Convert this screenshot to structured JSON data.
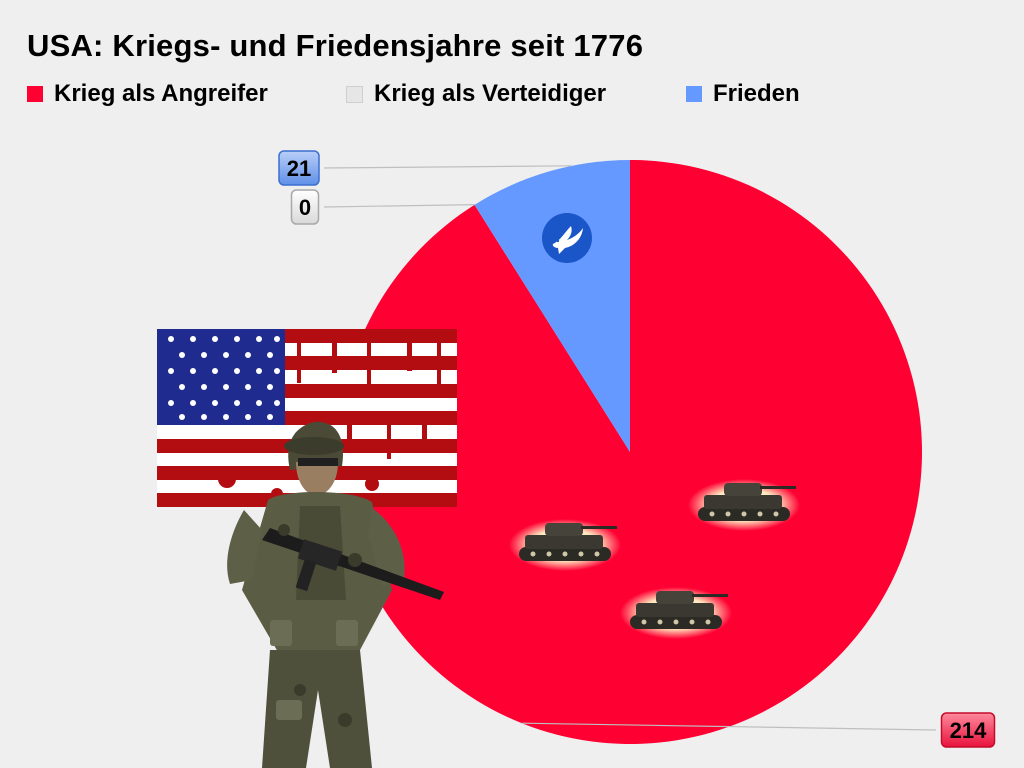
{
  "chart_data": {
    "type": "pie",
    "title": "USA: Kriegs- und Friedensjahre seit 1776",
    "legend_placement": "top",
    "slices": [
      {
        "label": "Krieg als Angreifer",
        "value": 214,
        "color": "#ff0033"
      },
      {
        "label": "Krieg als Verteidiger",
        "value": 0,
        "color": "#e6e6e6"
      },
      {
        "label": "Frieden",
        "value": 21,
        "color": "#6699ff"
      }
    ],
    "data_labels": [
      "214",
      "0",
      "21"
    ]
  },
  "decorations": {
    "icons": [
      "dove-icon",
      "tank-icon",
      "soldier-figure",
      "bloody-us-flag"
    ]
  }
}
